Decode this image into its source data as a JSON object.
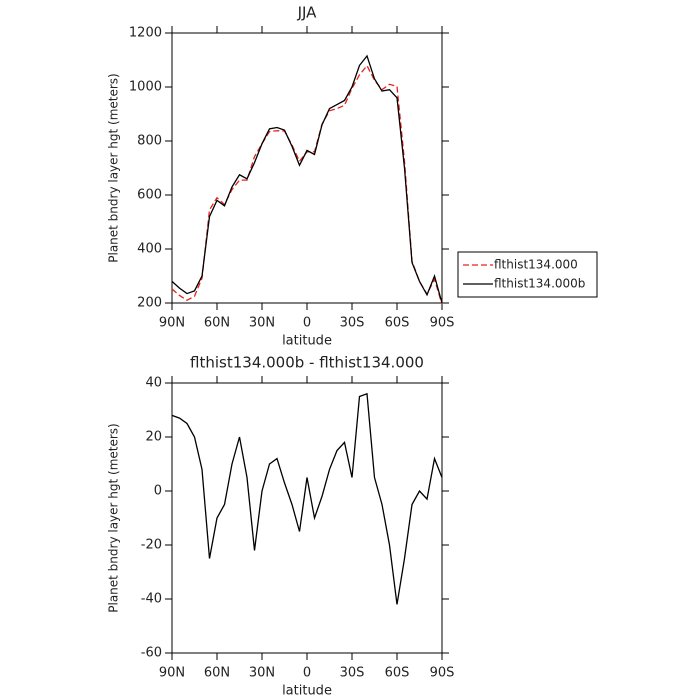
{
  "chart_data": [
    {
      "type": "line",
      "title": "JJA",
      "xlabel": "latitude",
      "ylabel": "Planet bndry layer hgt (meters)",
      "x": [
        90,
        85,
        80,
        75,
        70,
        65,
        60,
        55,
        50,
        45,
        40,
        35,
        30,
        25,
        20,
        15,
        10,
        5,
        0,
        -5,
        -10,
        -15,
        -20,
        -25,
        -30,
        -35,
        -40,
        -45,
        -50,
        -55,
        -60,
        -65,
        -70,
        -75,
        -80,
        -85,
        -90
      ],
      "series": [
        {
          "name": "flthist134.000",
          "color": "#e8211c",
          "dashed": true,
          "values": [
            252,
            228,
            210,
            225,
            292,
            545,
            590,
            565,
            620,
            655,
            655,
            742,
            790,
            835,
            838,
            837,
            785,
            725,
            760,
            760,
            862,
            912,
            920,
            932,
            995,
            1045,
            1079,
            1025,
            990,
            1010,
            1002,
            725,
            355,
            280,
            233,
            288,
            195
          ]
        },
        {
          "name": "flthist134.000b",
          "color": "#000000",
          "dashed": false,
          "values": [
            280,
            255,
            235,
            245,
            300,
            520,
            580,
            560,
            630,
            675,
            660,
            720,
            790,
            845,
            850,
            840,
            780,
            710,
            765,
            750,
            860,
            920,
            935,
            950,
            1000,
            1080,
            1115,
            1030,
            985,
            990,
            960,
            700,
            350,
            280,
            230,
            300,
            200
          ]
        }
      ],
      "xlim": [
        90,
        -90
      ],
      "xticks": [
        {
          "value": 90,
          "label": "90N"
        },
        {
          "value": 60,
          "label": "60N"
        },
        {
          "value": 30,
          "label": "30N"
        },
        0,
        {
          "value": -30,
          "label": "30S"
        },
        {
          "value": -60,
          "label": "60S"
        },
        {
          "value": -90,
          "label": "90S"
        }
      ],
      "ylim": [
        200,
        1200
      ],
      "yticks": [
        200,
        400,
        600,
        800,
        1000,
        1200
      ],
      "legend": "right"
    },
    {
      "type": "line",
      "title": "flthist134.000b - flthist134.000",
      "xlabel": "latitude",
      "ylabel": "Planet bndry layer hgt (meters)",
      "x": [
        90,
        85,
        80,
        75,
        70,
        65,
        60,
        55,
        50,
        45,
        40,
        35,
        30,
        25,
        20,
        15,
        10,
        5,
        0,
        -5,
        -10,
        -15,
        -20,
        -25,
        -30,
        -35,
        -40,
        -45,
        -50,
        -55,
        -60,
        -65,
        -70,
        -75,
        -80,
        -85,
        -90
      ],
      "color": "#000000",
      "values": [
        28,
        27,
        25,
        20,
        8,
        -25,
        -10,
        -5,
        10,
        20,
        5,
        -22,
        0,
        10,
        12,
        3,
        -5,
        -15,
        5,
        -10,
        -2,
        8,
        15,
        18,
        5,
        35,
        36,
        5,
        -5,
        -20,
        -42,
        -25,
        -5,
        0,
        -3,
        12,
        5
      ],
      "xlim": [
        90,
        -90
      ],
      "xticks": [
        {
          "value": 90,
          "label": "90N"
        },
        {
          "value": 60,
          "label": "60N"
        },
        {
          "value": 30,
          "label": "30N"
        },
        0,
        {
          "value": -30,
          "label": "30S"
        },
        {
          "value": -60,
          "label": "60S"
        },
        {
          "value": -90,
          "label": "90S"
        }
      ],
      "ylim": [
        -60,
        40
      ],
      "yticks": [
        -60,
        -40,
        -20,
        0,
        20,
        40
      ]
    }
  ]
}
